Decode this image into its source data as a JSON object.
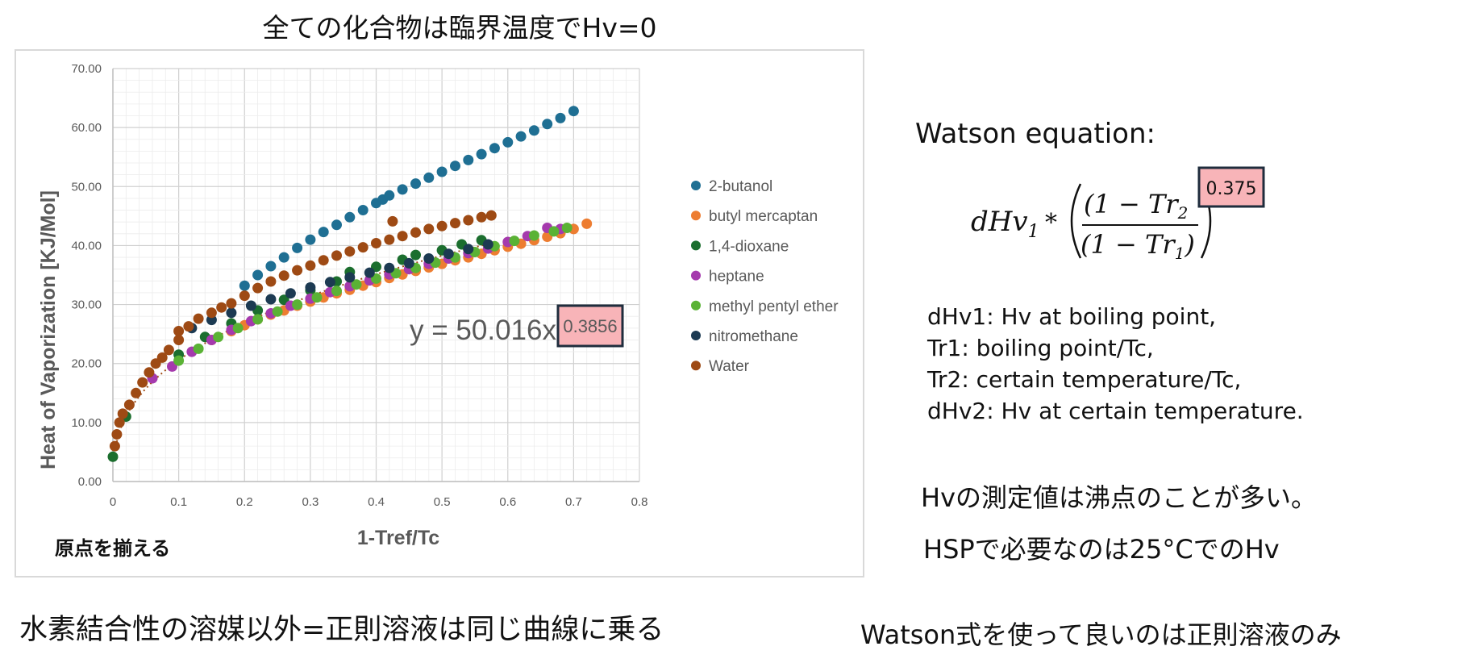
{
  "slide_title": "全ての化合物は臨界温度でHv=0",
  "notes": {
    "origin": "原点を揃える",
    "hbond": "水素結合性の溶媒以外=正則溶液は同じ曲線に乗る",
    "watson_only": "Watson式を使って良いのは正則溶液のみ",
    "measured": "Hvの測定値は沸点のことが多い。",
    "hsp": "HSPで必要なのは25°CでのHv"
  },
  "watson": {
    "title": "Watson equation:",
    "formula": {
      "lead": "dHv",
      "lead_sub": "1",
      "star": "*",
      "numerator": "(1 − Tr",
      "numerator_sub": "2",
      "denominator": "(1 − Tr",
      "denominator_sub": "1",
      "close": ")",
      "exponent": "0.375"
    },
    "definitions": [
      "dHv1: Hv at boiling point,",
      "Tr1: boiling point/Tc,",
      "Tr2: certain temperature/Tc,",
      "dHv2: Hv at certain temperature."
    ]
  },
  "colors": {
    "highlight_fill": "#f8b4b8",
    "highlight_border": "#1f2d3d"
  },
  "chart_data": {
    "type": "scatter",
    "xlabel": "1-Tref/Tc",
    "ylabel": "Heat of Vaporization [KJ/Mol]",
    "xlim": [
      0,
      0.8
    ],
    "ylim": [
      0,
      70
    ],
    "x_ticks": [
      "0",
      "0.1",
      "0.2",
      "0.3",
      "0.4",
      "0.5",
      "0.6",
      "0.7",
      "0.8"
    ],
    "y_ticks": [
      "0.00",
      "10.00",
      "20.00",
      "30.00",
      "40.00",
      "50.00",
      "60.00",
      "70.00"
    ],
    "grid": true,
    "legend_position": "right",
    "trendline": {
      "series": "Water",
      "label": "y = 50.016x",
      "exponent": "0.3856",
      "coef": 50.016,
      "power": 0.3856,
      "style": "dotted"
    },
    "series": [
      {
        "name": "2-butanol",
        "color": "#1f6f93",
        "points": [
          [
            0.2,
            33.2
          ],
          [
            0.22,
            35.0
          ],
          [
            0.24,
            36.5
          ],
          [
            0.26,
            38.0
          ],
          [
            0.28,
            39.6
          ],
          [
            0.3,
            41.0
          ],
          [
            0.32,
            42.3
          ],
          [
            0.34,
            43.5
          ],
          [
            0.36,
            44.8
          ],
          [
            0.38,
            46.0
          ],
          [
            0.4,
            47.2
          ],
          [
            0.41,
            47.8
          ],
          [
            0.42,
            48.5
          ],
          [
            0.44,
            49.5
          ],
          [
            0.46,
            50.5
          ],
          [
            0.48,
            51.5
          ],
          [
            0.5,
            52.5
          ],
          [
            0.52,
            53.5
          ],
          [
            0.54,
            54.5
          ],
          [
            0.56,
            55.5
          ],
          [
            0.58,
            56.5
          ],
          [
            0.6,
            57.5
          ],
          [
            0.62,
            58.5
          ],
          [
            0.64,
            59.5
          ],
          [
            0.66,
            60.6
          ],
          [
            0.68,
            61.6
          ],
          [
            0.7,
            62.8
          ]
        ]
      },
      {
        "name": "butyl mercaptan",
        "color": "#ed7d31",
        "points": [
          [
            0.15,
            24.0
          ],
          [
            0.18,
            25.5
          ],
          [
            0.2,
            26.5
          ],
          [
            0.22,
            27.5
          ],
          [
            0.24,
            28.3
          ],
          [
            0.26,
            29.0
          ],
          [
            0.28,
            29.8
          ],
          [
            0.3,
            30.5
          ],
          [
            0.32,
            31.2
          ],
          [
            0.34,
            31.9
          ],
          [
            0.36,
            32.5
          ],
          [
            0.38,
            33.2
          ],
          [
            0.4,
            33.8
          ],
          [
            0.42,
            34.5
          ],
          [
            0.44,
            35.1
          ],
          [
            0.46,
            35.7
          ],
          [
            0.48,
            36.3
          ],
          [
            0.5,
            36.9
          ],
          [
            0.52,
            37.5
          ],
          [
            0.54,
            38.0
          ],
          [
            0.56,
            38.6
          ],
          [
            0.58,
            39.2
          ],
          [
            0.6,
            39.8
          ],
          [
            0.62,
            40.3
          ],
          [
            0.64,
            40.9
          ],
          [
            0.66,
            41.5
          ],
          [
            0.68,
            42.1
          ],
          [
            0.7,
            42.8
          ],
          [
            0.72,
            43.7
          ]
        ]
      },
      {
        "name": "1,4-dioxane",
        "color": "#1b6e2e",
        "points": [
          [
            0.0,
            4.2
          ],
          [
            0.02,
            11.0
          ],
          [
            0.1,
            21.5
          ],
          [
            0.14,
            24.5
          ],
          [
            0.18,
            26.8
          ],
          [
            0.22,
            29.0
          ],
          [
            0.26,
            30.8
          ],
          [
            0.3,
            32.4
          ],
          [
            0.34,
            33.9
          ],
          [
            0.36,
            35.5
          ],
          [
            0.4,
            36.4
          ],
          [
            0.44,
            37.6
          ],
          [
            0.46,
            38.4
          ],
          [
            0.5,
            39.2
          ],
          [
            0.53,
            40.2
          ],
          [
            0.56,
            40.9
          ]
        ]
      },
      {
        "name": "heptane",
        "color": "#a53aad",
        "points": [
          [
            0.06,
            17.5
          ],
          [
            0.09,
            19.5
          ],
          [
            0.12,
            22.0
          ],
          [
            0.15,
            24.0
          ],
          [
            0.18,
            25.7
          ],
          [
            0.21,
            27.2
          ],
          [
            0.24,
            28.5
          ],
          [
            0.27,
            29.8
          ],
          [
            0.3,
            31.0
          ],
          [
            0.33,
            32.1
          ],
          [
            0.36,
            33.1
          ],
          [
            0.39,
            34.1
          ],
          [
            0.42,
            35.1
          ],
          [
            0.45,
            36.0
          ],
          [
            0.48,
            36.9
          ],
          [
            0.51,
            37.8
          ],
          [
            0.54,
            38.7
          ],
          [
            0.57,
            39.5
          ],
          [
            0.6,
            40.6
          ],
          [
            0.63,
            41.6
          ],
          [
            0.66,
            43.0
          ],
          [
            0.68,
            42.8
          ]
        ]
      },
      {
        "name": "methyl pentyl ether",
        "color": "#5ab235",
        "points": [
          [
            0.1,
            20.5
          ],
          [
            0.13,
            22.5
          ],
          [
            0.16,
            24.5
          ],
          [
            0.19,
            26.0
          ],
          [
            0.22,
            27.5
          ],
          [
            0.25,
            28.8
          ],
          [
            0.28,
            30.0
          ],
          [
            0.31,
            31.2
          ],
          [
            0.34,
            32.3
          ],
          [
            0.37,
            33.4
          ],
          [
            0.4,
            34.4
          ],
          [
            0.43,
            35.3
          ],
          [
            0.46,
            36.2
          ],
          [
            0.49,
            37.1
          ],
          [
            0.52,
            38.0
          ],
          [
            0.55,
            38.9
          ],
          [
            0.58,
            39.9
          ],
          [
            0.61,
            40.8
          ],
          [
            0.64,
            41.7
          ],
          [
            0.67,
            42.4
          ],
          [
            0.69,
            43.0
          ]
        ]
      },
      {
        "name": "nitromethane",
        "color": "#1c3a52",
        "points": [
          [
            0.12,
            26.0
          ],
          [
            0.15,
            27.4
          ],
          [
            0.18,
            28.6
          ],
          [
            0.21,
            29.8
          ],
          [
            0.24,
            30.9
          ],
          [
            0.27,
            31.9
          ],
          [
            0.3,
            32.9
          ],
          [
            0.33,
            33.8
          ],
          [
            0.36,
            34.6
          ],
          [
            0.39,
            35.4
          ],
          [
            0.42,
            36.2
          ],
          [
            0.45,
            37.0
          ],
          [
            0.48,
            37.8
          ],
          [
            0.51,
            38.6
          ],
          [
            0.54,
            39.4
          ],
          [
            0.57,
            40.2
          ]
        ]
      },
      {
        "name": "Water",
        "color": "#9e4a14",
        "points": [
          [
            0.003,
            6.0
          ],
          [
            0.006,
            8.0
          ],
          [
            0.01,
            10.0
          ],
          [
            0.015,
            11.5
          ],
          [
            0.025,
            13.0
          ],
          [
            0.035,
            15.0
          ],
          [
            0.045,
            16.8
          ],
          [
            0.055,
            18.5
          ],
          [
            0.065,
            20.0
          ],
          [
            0.075,
            21.0
          ],
          [
            0.085,
            22.3
          ],
          [
            0.1,
            24.0
          ],
          [
            0.1,
            25.5
          ],
          [
            0.115,
            26.3
          ],
          [
            0.13,
            27.6
          ],
          [
            0.15,
            28.6
          ],
          [
            0.165,
            29.5
          ],
          [
            0.18,
            30.2
          ],
          [
            0.2,
            31.5
          ],
          [
            0.22,
            32.8
          ],
          [
            0.24,
            33.9
          ],
          [
            0.26,
            34.9
          ],
          [
            0.28,
            35.8
          ],
          [
            0.3,
            36.6
          ],
          [
            0.32,
            37.5
          ],
          [
            0.34,
            38.3
          ],
          [
            0.36,
            39.0
          ],
          [
            0.38,
            39.7
          ],
          [
            0.4,
            40.4
          ],
          [
            0.42,
            41.0
          ],
          [
            0.44,
            41.6
          ],
          [
            0.46,
            42.2
          ],
          [
            0.48,
            42.8
          ],
          [
            0.5,
            43.3
          ],
          [
            0.52,
            43.8
          ],
          [
            0.54,
            44.3
          ],
          [
            0.56,
            44.8
          ],
          [
            0.575,
            45.1
          ],
          [
            0.425,
            44.1
          ]
        ]
      }
    ]
  }
}
